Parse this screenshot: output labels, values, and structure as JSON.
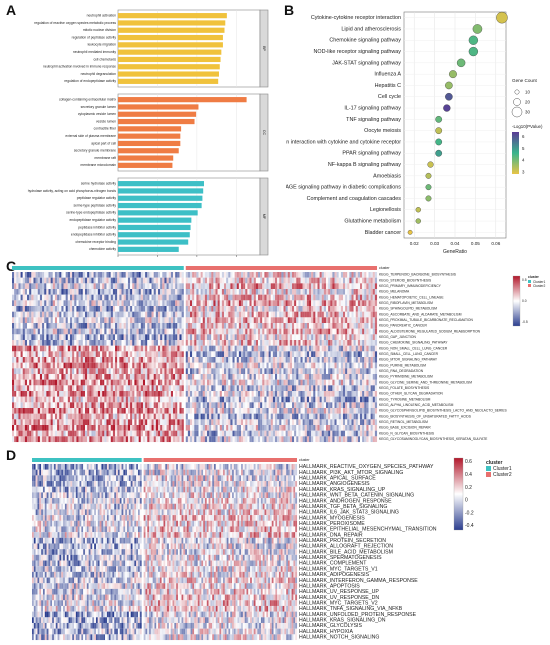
{
  "panels": {
    "A": "A",
    "B": "B",
    "C": "C",
    "D": "D"
  },
  "colors": {
    "bp": "#f0c23c",
    "cc": "#ef7c44",
    "mf": "#3dbfc6",
    "cluster1": "#3ec2c2",
    "cluster2": "#e8706e",
    "heat_high": "#b2182b",
    "heat_mid": "#ffffff",
    "heat_low": "#2b3e8f"
  },
  "chart_data": [
    {
      "type": "bar",
      "panel": "A",
      "xlabel": "-Log10 P-Value",
      "xlim": [
        0,
        18
      ],
      "xticks": [
        0,
        5,
        10,
        15
      ],
      "groups": [
        {
          "name": "BP",
          "color": "#f0c23c",
          "categories": [
            "neutrophil activation",
            "regulation of reactive oxygen species metabolic process",
            "mitotic nuclear division",
            "regulation of peptidase activity",
            "leukocyte migration",
            "neutrophil mediated immunity",
            "cell chemotaxis",
            "neutrophil activation involved in immune response",
            "neutrophil degranulation",
            "regulation of endopeptidase activity"
          ],
          "values": [
            13.8,
            13.6,
            13.5,
            13.3,
            13.3,
            13.1,
            13.0,
            12.9,
            12.8,
            12.7
          ]
        },
        {
          "name": "CC",
          "color": "#ef7c44",
          "categories": [
            "collagen-containing extracellular matrix",
            "secretory granule lumen",
            "cytoplasmic vesicle lumen",
            "vesicle lumen",
            "contractile fiber",
            "external side of plasma membrane",
            "apical part of cell",
            "secretory granule membrane",
            "membrane raft",
            "membrane microdomain"
          ],
          "values": [
            16.3,
            10.2,
            9.9,
            9.7,
            8.0,
            7.9,
            7.9,
            7.7,
            7.0,
            6.9
          ]
        },
        {
          "name": "MF",
          "color": "#3dbfc6",
          "categories": [
            "serine hydrolase activity",
            "hydrolase activity, acting on acid phosphorus-nitrogen bonds",
            "peptidase regulator activity",
            "serine-type peptidase activity",
            "serine-type endopeptidase activity",
            "endopeptidase regulator activity",
            "peptidase inhibitor activity",
            "endopeptidase inhibitor activity",
            "chemokine receptor binding",
            "chemokine activity"
          ],
          "values": [
            10.9,
            10.8,
            10.7,
            10.6,
            10.1,
            9.3,
            9.2,
            9.1,
            8.9,
            7.7
          ]
        }
      ]
    },
    {
      "type": "scatter",
      "panel": "B",
      "xlabel": "GeneRatio",
      "xlim": [
        0.015,
        0.065
      ],
      "xticks": [
        0.02,
        0.03,
        0.04,
        0.05,
        0.06
      ],
      "size_legend": {
        "title": "Gene Count",
        "values": [
          10,
          20,
          30
        ]
      },
      "color_legend": {
        "title": "-Log10(PValue)",
        "values": [
          3,
          4,
          5,
          6
        ]
      },
      "categories": [
        "Cytokine-cytokine receptor interaction",
        "Lipid and atherosclerosis",
        "Chemokine signaling pathway",
        "NOD-like receptor signaling pathway",
        "JAK-STAT signaling pathway",
        "Influenza A",
        "Hepatitis C",
        "Cell cycle",
        "IL-17 signaling pathway",
        "TNF signaling pathway",
        "Oocyte meiosis",
        "Viral protein interaction with cytokine and cytokine receptor",
        "PPAR signaling pathway",
        "NF-kappa B signaling pathway",
        "Amoebiasis",
        "AGE-RAGE signaling pathway in diabetic complications",
        "Complement and coagulation cascades",
        "Legionellosis",
        "Glutathione metabolism",
        "Bladder cancer"
      ],
      "x": [
        0.063,
        0.051,
        0.049,
        0.049,
        0.043,
        0.039,
        0.037,
        0.037,
        0.036,
        0.032,
        0.032,
        0.032,
        0.032,
        0.028,
        0.027,
        0.027,
        0.027,
        0.022,
        0.022,
        0.018
      ],
      "count": [
        34,
        27,
        26,
        26,
        23,
        21,
        20,
        20,
        19,
        17,
        17,
        17,
        17,
        15,
        14,
        14,
        14,
        12,
        12,
        10
      ],
      "logp": [
        3.2,
        4.0,
        4.5,
        4.5,
        4.2,
        3.8,
        3.8,
        6.0,
        6.3,
        4.3,
        3.4,
        4.6,
        5.0,
        3.3,
        3.5,
        4.2,
        3.9,
        3.4,
        3.7,
        3.0
      ]
    },
    {
      "type": "heatmap",
      "panel": "C",
      "column_groups": [
        {
          "name": "Cluster1",
          "count": 160
        },
        {
          "name": "Cluster2",
          "count": 180
        }
      ],
      "legend_title": "cluster",
      "legend_items": [
        "Cluster1",
        "Cluster2"
      ],
      "scale_ticks": [
        "0.5",
        "0.0",
        "-0.5"
      ],
      "rows": [
        "KEGG_TERPENOID_BACKBONE_BIOSYNTHESIS",
        "KEGG_STEROID_BIOSYNTHESIS",
        "KEGG_PRIMARY_IMMUNODEFICIENCY",
        "KEGG_MELANOMA",
        "KEGG_HEMATOPOIETIC_CELL_LINEAGE",
        "KEGG_RIBOFLAVIN_METABOLISM",
        "KEGG_SPHINGOLIPID_METABOLISM",
        "KEGG_ASCORBATE_AND_ALDARATE_METABOLISM",
        "KEGG_PROXIMAL_TUBULE_BICARBONATE_RECLAMATION",
        "KEGG_PANCREATIC_CANCER",
        "KEGG_ALDOSTERONE_REGULATED_SODIUM_REABSORPTION",
        "KEGG_GAP_JUNCTION",
        "KEGG_CHEMOKINE_SIGNALING_PATHWAY",
        "KEGG_NON_SMALL_CELL_LUNG_CANCER",
        "KEGG_SMALL_CELL_LUNG_CANCER",
        "KEGG_MTOR_SIGNALING_PATHWAY",
        "KEGG_PURINE_METABOLISM",
        "KEGG_RNA_DEGRADATION",
        "KEGG_PYRIMIDINE_METABOLISM",
        "KEGG_GLYCINE_SERINE_AND_THREONINE_METABOLISM",
        "KEGG_FOLATE_BIOSYNTHESIS",
        "KEGG_OTHER_GLYCAN_DEGRADATION",
        "KEGG_TYROSINE_METABOLISM",
        "KEGG_ALPHA_LINOLENIC_ACID_METABOLISM",
        "KEGG_GLYCOSPHINGOLIPID_BIOSYNTHESIS_LACTO_AND_NEOLACTO_SERIES",
        "KEGG_BIOSYNTHESIS_OF_UNSATURATED_FATTY_ACIDS",
        "KEGG_RETINOL_METABOLISM",
        "KEGG_BASE_EXCISION_REPAIR",
        "KEGG_N_GLYCAN_BIOSYNTHESIS",
        "KEGG_GLYCOSAMINOGLYCAN_BIOSYNTHESIS_KERATAN_SULFATE"
      ]
    },
    {
      "type": "heatmap",
      "panel": "D",
      "column_groups": [
        {
          "name": "Cluster1",
          "count": 120
        },
        {
          "name": "Cluster2",
          "count": 170
        }
      ],
      "legend_title": "cluster",
      "legend_items": [
        "Cluster1",
        "Cluster2"
      ],
      "scale_ticks": [
        "0.6",
        "0.4",
        "0.2",
        "0",
        "-0.2",
        "-0.4"
      ],
      "rows": [
        "HALLMARK_REACTIVE_OXYGEN_SPECIES_PATHWAY",
        "HALLMARK_PI3K_AKT_MTOR_SIGNALING",
        "HALLMARK_APICAL_SURFACE",
        "HALLMARK_ANGIOGENESIS",
        "HALLMARK_KRAS_SIGNALING_UP",
        "HALLMARK_WNT_BETA_CATENIN_SIGNALING",
        "HALLMARK_ANDROGEN_RESPONSE",
        "HALLMARK_TGF_BETA_SIGNALING",
        "HALLMARK_IL6_JAK_STAT3_SIGNALING",
        "HALLMARK_MYOGENESIS",
        "HALLMARK_PEROXISOME",
        "HALLMARK_EPITHELIAL_MESENCHYMAL_TRANSITION",
        "HALLMARK_DNA_REPAIR",
        "HALLMARK_PROTEIN_SECRETION",
        "HALLMARK_ALLOGRAFT_REJECTION",
        "HALLMARK_BILE_ACID_METABOLISM",
        "HALLMARK_SPERMATOGENESIS",
        "HALLMARK_COMPLEMENT",
        "HALLMARK_MYC_TARGETS_V1",
        "HALLMARK_ADIPOGENESIS",
        "HALLMARK_INTERFERON_GAMMA_RESPONSE",
        "HALLMARK_APOPTOSIS",
        "HALLMARK_UV_RESPONSE_UP",
        "HALLMARK_UV_RESPONSE_DN",
        "HALLMARK_MYC_TARGETS_V2",
        "HALLMARK_TNFA_SIGNALING_VIA_NFKB",
        "HALLMARK_UNFOLDED_PROTEIN_RESPONSE",
        "HALLMARK_KRAS_SIGNALING_DN",
        "HALLMARK_GLYCOLYSIS",
        "HALLMARK_HYPOXIA",
        "HALLMARK_NOTCH_SIGNALING"
      ]
    }
  ]
}
